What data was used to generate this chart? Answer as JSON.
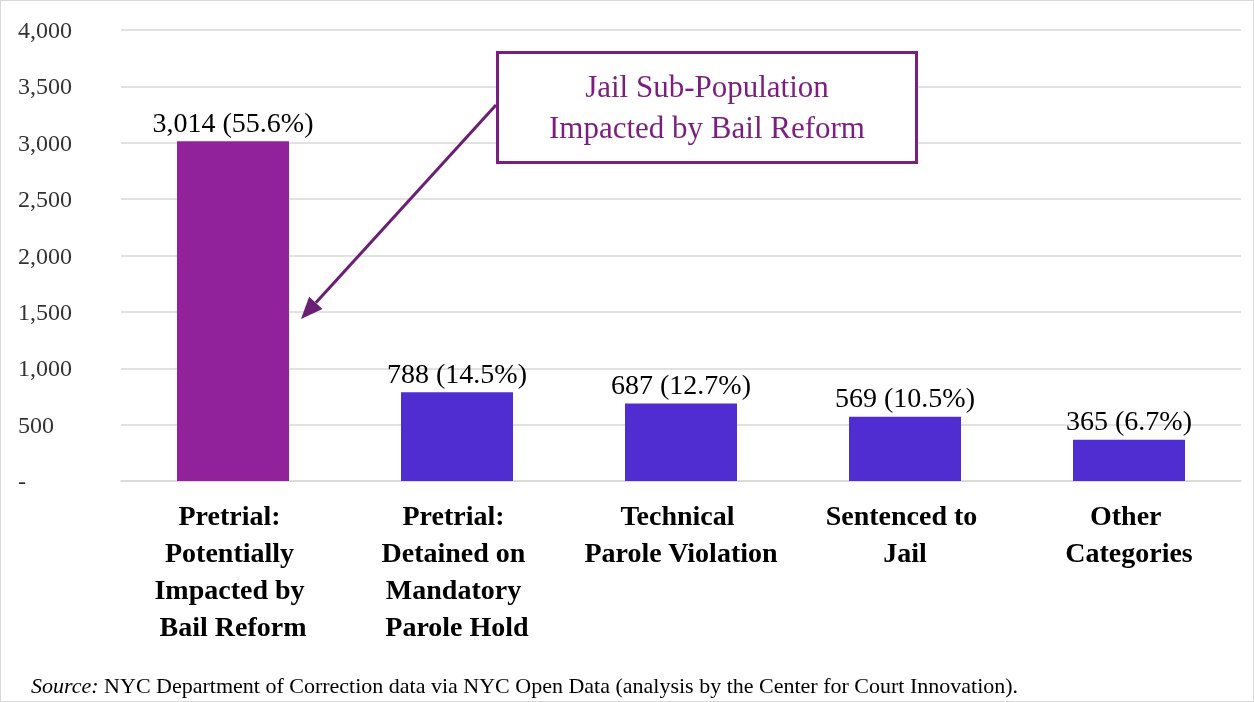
{
  "chart_data": {
    "type": "bar",
    "categories": [
      "Pretrial: Potentially Impacted by Bail Reform",
      "Pretrial: Detained on Mandatory Parole Hold",
      "Technical Parole Violation",
      "Sentenced to Jail",
      "Other Categories"
    ],
    "values": [
      3014,
      788,
      687,
      569,
      365
    ],
    "colors": [
      "#92229b",
      "#502dd1",
      "#502dd1",
      "#502dd1",
      "#502dd1"
    ],
    "value_labels": [
      "3,014 (55.6%)",
      "788 (14.5%)",
      "687 (12.7%)",
      "569 (10.5%)",
      "365 (6.7%)"
    ],
    "ylim": [
      0,
      4000
    ],
    "yticks": [
      {
        "value": 0,
        "label": "-"
      },
      {
        "value": 500,
        "label": "500"
      },
      {
        "value": 1000,
        "label": "1,000"
      },
      {
        "value": 1500,
        "label": "1,500"
      },
      {
        "value": 2000,
        "label": "2,000"
      },
      {
        "value": 2500,
        "label": "2,500"
      },
      {
        "value": 3000,
        "label": "3,000"
      },
      {
        "value": 3500,
        "label": "3,500"
      },
      {
        "value": 4000,
        "label": "4,000"
      }
    ],
    "grid": "y",
    "annotations": [
      "Jail Sub-Population Impacted by Bail Reform",
      "Source: NYC Department of Correction data via NYC Open Data (analysis by the Center for Court Innovation)."
    ]
  }
}
